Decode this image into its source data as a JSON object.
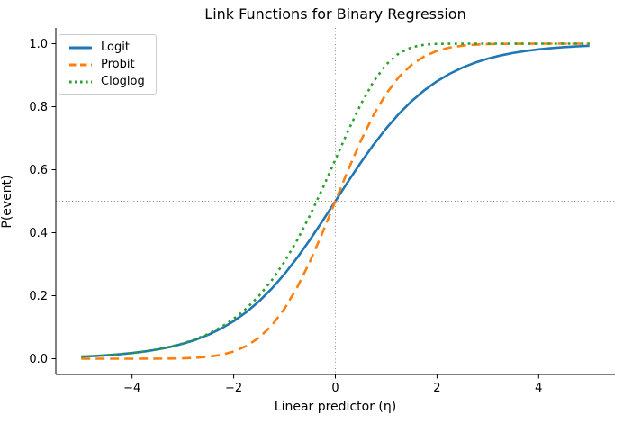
{
  "figure": {
    "background": "#ffffff",
    "spine_color": "#000000",
    "tick_color": "#000000"
  },
  "chart_data": {
    "type": "line",
    "title": "Link Functions for Binary Regression",
    "xlabel": "Linear predictor (η)",
    "ylabel": "P(event)",
    "xlim": [
      -5.5,
      5.5
    ],
    "ylim": [
      -0.05,
      1.05
    ],
    "grid": false,
    "legend_position": "upper left",
    "xticks": {
      "values": [
        -4,
        -2,
        0,
        2,
        4
      ],
      "labels": [
        "−4",
        "−2",
        "0",
        "2",
        "4"
      ]
    },
    "yticks": {
      "values": [
        0,
        0.2,
        0.4,
        0.6,
        0.8,
        1.0
      ],
      "labels": [
        "0.0",
        "0.2",
        "0.4",
        "0.6",
        "0.8",
        "1.0"
      ]
    },
    "reference_lines": {
      "horizontal_y": 0.5,
      "vertical_x": 0,
      "color": "#808080",
      "style": "dotted"
    },
    "x": [
      -5,
      -4.75,
      -4.5,
      -4.25,
      -4,
      -3.75,
      -3.5,
      -3.25,
      -3,
      -2.75,
      -2.5,
      -2.25,
      -2,
      -1.75,
      -1.5,
      -1.25,
      -1,
      -0.75,
      -0.5,
      -0.25,
      0,
      0.25,
      0.5,
      0.75,
      1,
      1.25,
      1.5,
      1.75,
      2,
      2.25,
      2.5,
      2.75,
      3,
      3.25,
      3.5,
      3.75,
      4,
      4.25,
      4.5,
      4.75,
      5
    ],
    "series": [
      {
        "name": "Logit",
        "color": "#1f77b4",
        "style": "solid",
        "linewidth": 2.6,
        "values": [
          0.0067,
          0.0086,
          0.011,
          0.0141,
          0.018,
          0.023,
          0.0293,
          0.0373,
          0.0474,
          0.0601,
          0.0759,
          0.0953,
          0.1192,
          0.148,
          0.1824,
          0.2227,
          0.2689,
          0.3208,
          0.3775,
          0.4378,
          0.5,
          0.5622,
          0.6225,
          0.6792,
          0.7311,
          0.7773,
          0.8176,
          0.852,
          0.8808,
          0.9047,
          0.9241,
          0.9399,
          0.9526,
          0.9627,
          0.9707,
          0.977,
          0.982,
          0.9859,
          0.989,
          0.9914,
          0.9933
        ]
      },
      {
        "name": "Probit",
        "color": "#ff7f0e",
        "style": "dashed",
        "linewidth": 2.6,
        "values": [
          0.0,
          0.0,
          0.0,
          0.0,
          0.0,
          0.0001,
          0.0002,
          0.0006,
          0.0013,
          0.003,
          0.0062,
          0.0122,
          0.0228,
          0.0401,
          0.0668,
          0.1056,
          0.1587,
          0.2266,
          0.3085,
          0.4013,
          0.5,
          0.5987,
          0.6915,
          0.7734,
          0.8413,
          0.8944,
          0.9332,
          0.9599,
          0.9772,
          0.9878,
          0.9938,
          0.997,
          0.9987,
          0.9994,
          0.9998,
          0.9999,
          1.0,
          1.0,
          1.0,
          1.0,
          1.0
        ]
      },
      {
        "name": "Cloglog",
        "color": "#2ca02c",
        "style": "dotted",
        "linewidth": 2.6,
        "values": [
          0.0067,
          0.0086,
          0.011,
          0.0142,
          0.0181,
          0.0232,
          0.0297,
          0.038,
          0.0486,
          0.0619,
          0.0788,
          0.1,
          0.1266,
          0.1595,
          0.2,
          0.249,
          0.3078,
          0.3766,
          0.4548,
          0.541,
          0.6321,
          0.7231,
          0.8077,
          0.8796,
          0.934,
          0.9695,
          0.9887,
          0.9968,
          0.9994,
          0.9999,
          1.0,
          1.0,
          1.0,
          1.0,
          1.0,
          1.0,
          1.0,
          1.0,
          1.0,
          1.0,
          1.0
        ]
      }
    ]
  }
}
